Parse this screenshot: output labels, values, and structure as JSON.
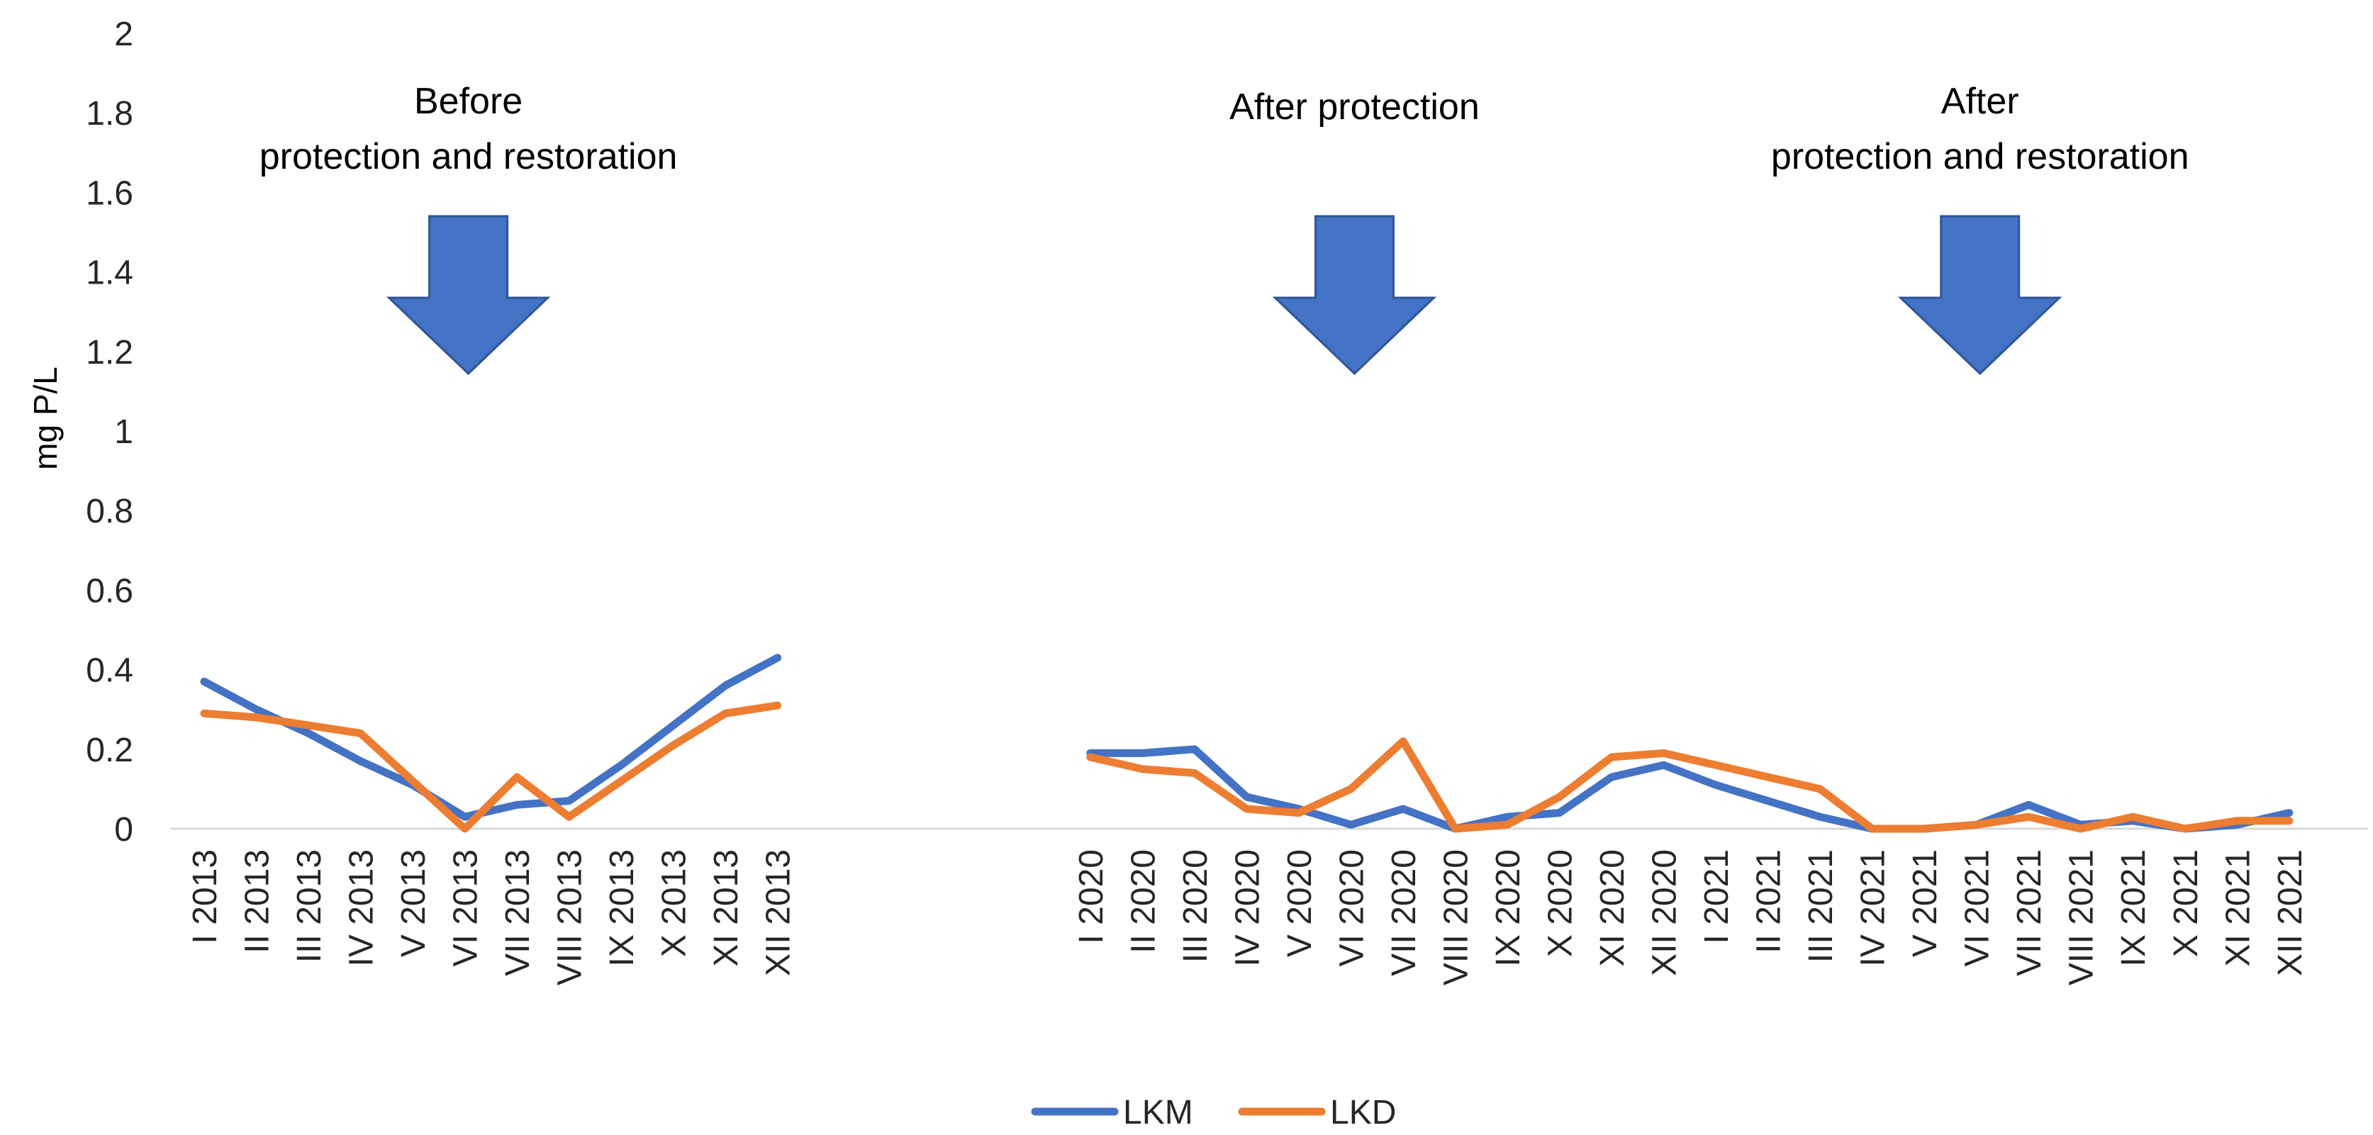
{
  "chart_data": {
    "type": "line",
    "title": "",
    "xlabel": "",
    "ylabel": "mg P/L",
    "ylim": [
      0,
      2
    ],
    "yticks": [
      "0",
      "0.2",
      "0.4",
      "0.6",
      "0.8",
      "1",
      "1.2",
      "1.4",
      "1.6",
      "1.8",
      "2"
    ],
    "grid": false,
    "legend_position": "bottom-center",
    "categories": [
      "I 2013",
      "II 2013",
      "III 2013",
      "IV 2013",
      "V 2013",
      "VI 2013",
      "VII 2013",
      "VIII 2013",
      "IX 2013",
      "X 2013",
      "XI 2013",
      "XII 2013",
      "",
      "",
      "",
      "",
      "",
      "I 2020",
      "II 2020",
      "III 2020",
      "IV 2020",
      "V 2020",
      "VI 2020",
      "VII 2020",
      "VIII 2020",
      "IX 2020",
      "X 2020",
      "XI 2020",
      "XII 2020",
      "I 2021",
      "II 2021",
      "III 2021",
      "IV 2021",
      "V 2021",
      "VI 2021",
      "VII 2021",
      "VIII 2021",
      "IX 2021",
      "X 2021",
      "XI 2021",
      "XII 2021"
    ],
    "series": [
      {
        "name": "LKM",
        "color": "#4472C4",
        "values": [
          0.37,
          0.3,
          0.24,
          0.17,
          0.11,
          0.03,
          0.06,
          0.07,
          0.16,
          0.26,
          0.36,
          0.43,
          null,
          null,
          null,
          null,
          null,
          0.19,
          0.19,
          0.2,
          0.08,
          0.05,
          0.01,
          0.05,
          0.0,
          0.03,
          0.04,
          0.13,
          0.16,
          0.11,
          0.07,
          0.03,
          0.0,
          0.0,
          0.01,
          0.06,
          0.01,
          0.02,
          0.0,
          0.01,
          0.04
        ]
      },
      {
        "name": "LKD",
        "color": "#ED7D31",
        "values": [
          0.29,
          0.28,
          0.26,
          0.24,
          0.12,
          0.0,
          0.13,
          0.03,
          0.12,
          0.21,
          0.29,
          0.31,
          null,
          null,
          null,
          null,
          null,
          0.18,
          0.15,
          0.14,
          0.05,
          0.04,
          0.1,
          0.22,
          0.0,
          0.01,
          0.08,
          0.18,
          0.19,
          0.16,
          0.13,
          0.1,
          0.0,
          0.0,
          0.01,
          0.03,
          0.0,
          0.03,
          0.0,
          0.02,
          0.02
        ]
      }
    ],
    "annotations": [
      {
        "id": "before",
        "lines": [
          "Before",
          "protection and restoration"
        ],
        "at_category": "VI 2013"
      },
      {
        "id": "after-protection",
        "lines": [
          "After protection"
        ],
        "at_category": "VI 2020"
      },
      {
        "id": "after-restoration",
        "lines": [
          "After",
          "protection and restoration"
        ],
        "at_category": "VI 2021"
      }
    ],
    "annotation_arrow_color": "#4472C4"
  }
}
